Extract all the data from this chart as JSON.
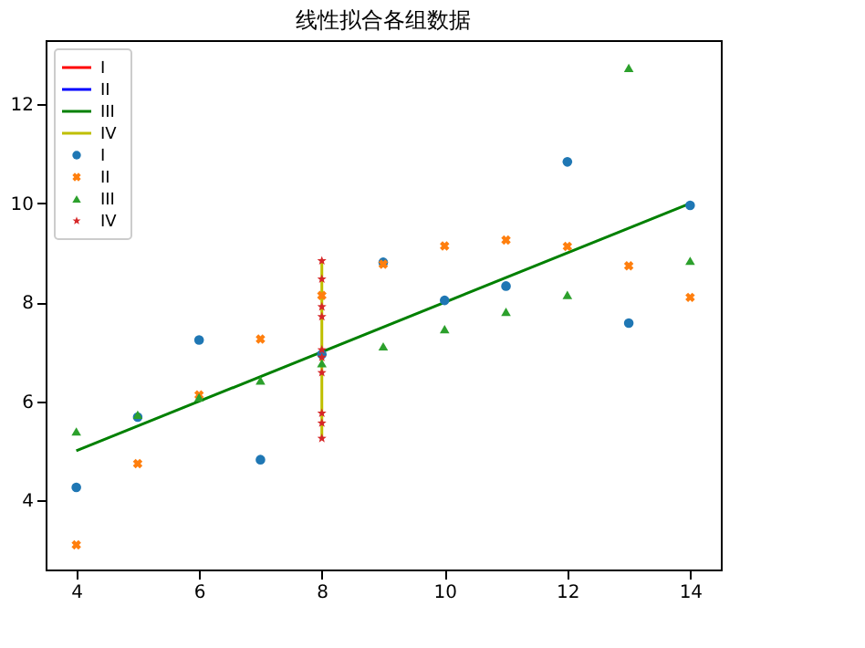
{
  "chart_data": {
    "type": "scatter",
    "title": "线性拟合各组数据",
    "xlim": [
      3.5,
      14.5
    ],
    "xticks": [
      4,
      6,
      8,
      10,
      12,
      14
    ],
    "ylim": [
      2.6,
      13.3
    ],
    "yticks": [
      4,
      6,
      8,
      10,
      12
    ],
    "grid": false,
    "legend": "top left",
    "series": [
      {
        "name": "I",
        "type": "line",
        "color": "#ff0000",
        "marker": "none"
      },
      {
        "name": "II",
        "type": "line",
        "color": "#0000ff",
        "marker": "none"
      },
      {
        "name": "III",
        "type": "line",
        "color": "#008000",
        "marker": "none",
        "x": [
          4,
          14
        ],
        "values": [
          5.0,
          10.0
        ]
      },
      {
        "name": "IV",
        "type": "line",
        "color": "#bfbf00",
        "marker": "none",
        "x": [
          8,
          8,
          8,
          8,
          8,
          8,
          8,
          8,
          8,
          8
        ],
        "values": [
          6.58,
          5.76,
          7.71,
          8.84,
          8.47,
          7.04,
          5.25,
          5.56,
          7.91,
          6.89
        ]
      },
      {
        "name": "I",
        "color": "#1f77b4",
        "marker": "circle",
        "x": [
          10,
          8,
          13,
          9,
          11,
          14,
          6,
          4,
          12,
          7,
          5
        ],
        "values": [
          8.04,
          6.95,
          7.58,
          8.81,
          8.33,
          9.96,
          7.24,
          4.26,
          10.84,
          4.82,
          5.68
        ]
      },
      {
        "name": "II",
        "color": "#ff7f0e",
        "marker": "cross",
        "x": [
          10,
          8,
          13,
          9,
          11,
          14,
          6,
          4,
          12,
          7,
          5
        ],
        "values": [
          9.14,
          8.14,
          8.74,
          8.77,
          9.26,
          8.1,
          6.13,
          3.1,
          9.13,
          7.26,
          4.74
        ]
      },
      {
        "name": "III",
        "color": "#2ca02c",
        "marker": "triangle",
        "x": [
          10,
          8,
          13,
          9,
          11,
          14,
          6,
          4,
          12,
          7,
          5
        ],
        "values": [
          7.46,
          6.77,
          12.74,
          7.11,
          7.81,
          8.84,
          6.08,
          5.39,
          8.15,
          6.42,
          5.73
        ]
      },
      {
        "name": "IV",
        "color": "#d62728",
        "marker": "star",
        "x": [
          8,
          8,
          8,
          8,
          8,
          8,
          8,
          8,
          8,
          8
        ],
        "values": [
          6.58,
          5.76,
          7.71,
          8.84,
          8.47,
          7.04,
          5.25,
          5.56,
          7.91,
          6.89
        ]
      }
    ]
  }
}
